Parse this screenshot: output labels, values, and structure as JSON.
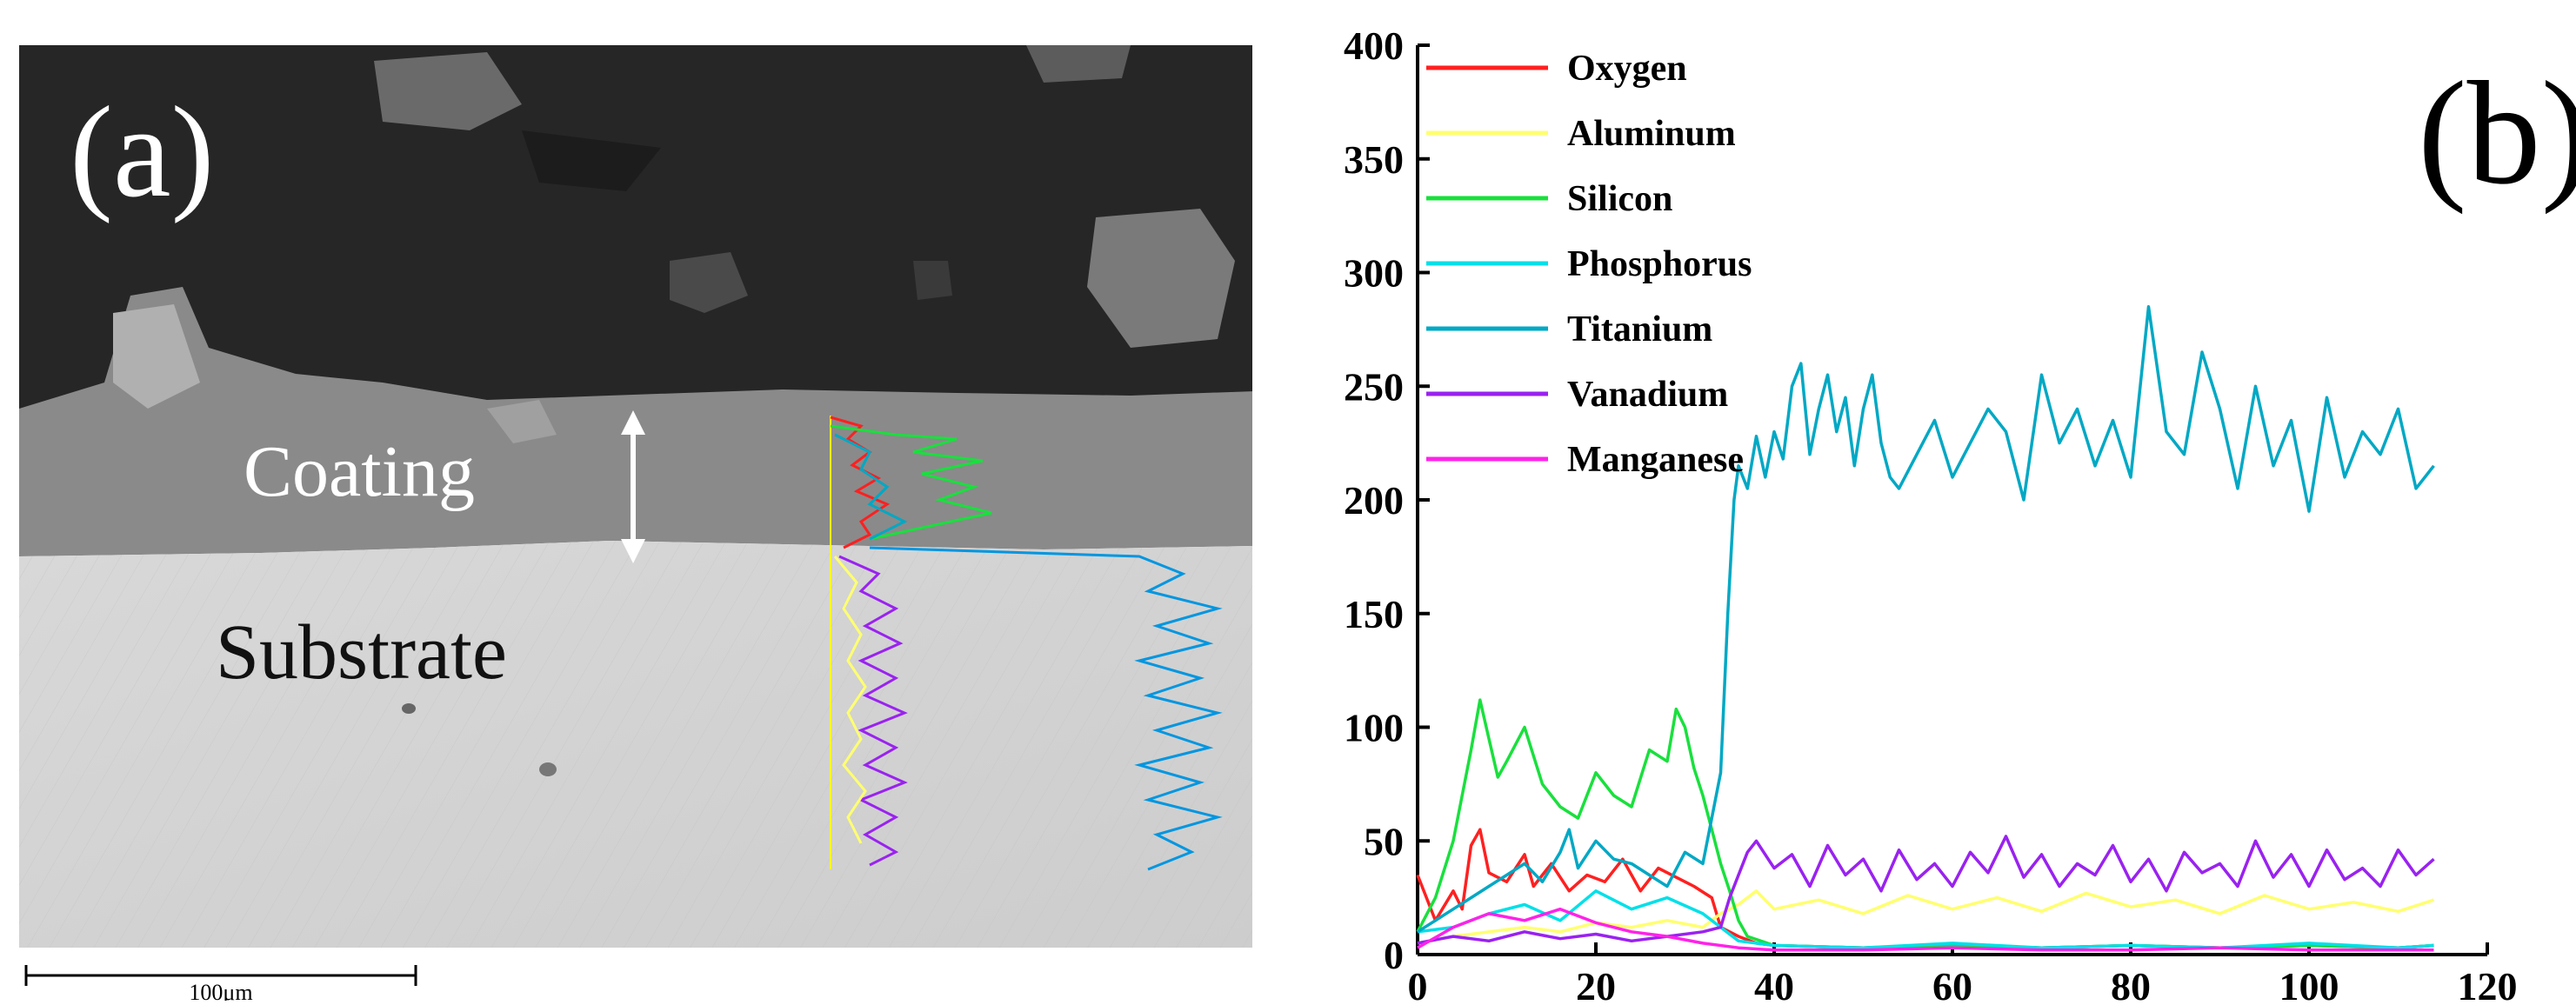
{
  "panel_a": {
    "label": "(a)",
    "coating_label": "Coating",
    "substrate_label": "Substrate",
    "scale_label": "100μm"
  },
  "panel_b": {
    "label": "(b)"
  },
  "chart_data": {
    "type": "line",
    "title": "",
    "xlabel": "",
    "ylabel": "",
    "xlim": [
      0,
      120
    ],
    "ylim": [
      0,
      400
    ],
    "xticks": [
      0,
      20,
      40,
      60,
      80,
      100,
      120
    ],
    "yticks": [
      0,
      50,
      100,
      150,
      200,
      250,
      300,
      350,
      400
    ],
    "legend_position": "top-left",
    "grid": false,
    "series": [
      {
        "name": "Oxygen",
        "color": "#ff2020",
        "x": [
          0,
          2,
          4,
          5,
          6,
          7,
          8,
          10,
          12,
          13,
          15,
          17,
          19,
          21,
          23,
          25,
          27,
          29,
          31,
          33,
          34,
          36,
          38,
          40,
          50,
          60,
          70,
          80,
          90,
          100,
          110,
          114
        ],
        "y": [
          35,
          15,
          28,
          20,
          48,
          55,
          36,
          32,
          44,
          30,
          40,
          28,
          35,
          32,
          42,
          28,
          38,
          34,
          30,
          25,
          12,
          8,
          5,
          4,
          3,
          4,
          3,
          4,
          3,
          4,
          3,
          4
        ]
      },
      {
        "name": "Aluminum",
        "color": "#ffff70",
        "x": [
          0,
          4,
          8,
          12,
          16,
          20,
          24,
          28,
          32,
          34,
          36,
          38,
          40,
          45,
          50,
          55,
          60,
          65,
          70,
          75,
          80,
          85,
          90,
          95,
          100,
          105,
          110,
          114
        ],
        "y": [
          5,
          8,
          10,
          12,
          10,
          14,
          12,
          15,
          12,
          18,
          22,
          28,
          20,
          24,
          18,
          26,
          20,
          25,
          19,
          27,
          21,
          24,
          18,
          26,
          20,
          23,
          19,
          24
        ]
      },
      {
        "name": "Silicon",
        "color": "#19e03d",
        "x": [
          0,
          2,
          4,
          6,
          7,
          8,
          9,
          10,
          12,
          14,
          16,
          18,
          20,
          22,
          24,
          26,
          28,
          29,
          30,
          31,
          32,
          33,
          34,
          35,
          36,
          37,
          40,
          50,
          60,
          70,
          80,
          90,
          100,
          110,
          114
        ],
        "y": [
          10,
          25,
          50,
          90,
          112,
          95,
          78,
          85,
          100,
          75,
          65,
          60,
          80,
          70,
          65,
          90,
          85,
          108,
          100,
          82,
          70,
          55,
          40,
          28,
          15,
          8,
          4,
          3,
          4,
          3,
          4,
          3,
          4,
          3,
          4
        ]
      },
      {
        "name": "Phosphorus",
        "color": "#00e0e8",
        "x": [
          0,
          4,
          8,
          12,
          16,
          20,
          24,
          28,
          32,
          34,
          36,
          40,
          50,
          60,
          70,
          80,
          90,
          100,
          110,
          114
        ],
        "y": [
          10,
          12,
          18,
          22,
          15,
          28,
          20,
          25,
          18,
          12,
          6,
          4,
          3,
          5,
          3,
          4,
          3,
          5,
          3,
          4
        ]
      },
      {
        "name": "Titanium",
        "color": "#00a8c4",
        "x": [
          0,
          2,
          4,
          6,
          8,
          10,
          12,
          14,
          16,
          17,
          18,
          20,
          22,
          24,
          26,
          28,
          30,
          32,
          34,
          34.8,
          35.5,
          36,
          37,
          38,
          39,
          40,
          41,
          42,
          43,
          44,
          45,
          46,
          47,
          48,
          49,
          50,
          51,
          52,
          53,
          54,
          56,
          58,
          60,
          62,
          64,
          66,
          68,
          70,
          72,
          74,
          76,
          78,
          80,
          82,
          84,
          86,
          88,
          90,
          92,
          94,
          96,
          98,
          100,
          102,
          104,
          106,
          108,
          110,
          112,
          114
        ],
        "y": [
          10,
          15,
          20,
          25,
          30,
          35,
          40,
          32,
          45,
          55,
          38,
          50,
          42,
          40,
          35,
          30,
          45,
          40,
          80,
          150,
          200,
          215,
          205,
          228,
          210,
          230,
          218,
          250,
          260,
          220,
          240,
          255,
          230,
          245,
          215,
          240,
          255,
          225,
          210,
          205,
          220,
          235,
          210,
          225,
          240,
          230,
          200,
          255,
          225,
          240,
          215,
          235,
          210,
          285,
          230,
          220,
          265,
          240,
          205,
          250,
          215,
          235,
          195,
          245,
          210,
          230,
          220,
          240,
          205,
          215
        ]
      },
      {
        "name": "Vanadium",
        "color": "#9a22f0",
        "x": [
          0,
          4,
          8,
          12,
          16,
          20,
          24,
          28,
          32,
          34,
          35,
          36,
          37,
          38,
          40,
          42,
          44,
          46,
          48,
          50,
          52,
          54,
          56,
          58,
          60,
          62,
          64,
          66,
          68,
          70,
          72,
          74,
          76,
          78,
          80,
          82,
          84,
          86,
          88,
          90,
          92,
          94,
          96,
          98,
          100,
          102,
          104,
          106,
          108,
          110,
          112,
          114
        ],
        "y": [
          5,
          8,
          6,
          10,
          7,
          9,
          6,
          8,
          10,
          12,
          25,
          35,
          45,
          50,
          38,
          44,
          30,
          48,
          35,
          42,
          28,
          46,
          33,
          40,
          30,
          45,
          36,
          52,
          34,
          44,
          30,
          40,
          35,
          48,
          32,
          42,
          28,
          45,
          36,
          40,
          30,
          50,
          34,
          44,
          30,
          46,
          33,
          38,
          30,
          46,
          35,
          42
        ]
      },
      {
        "name": "Manganese",
        "color": "#ff22e8",
        "x": [
          0,
          4,
          8,
          12,
          16,
          20,
          24,
          28,
          32,
          36,
          40,
          50,
          60,
          70,
          80,
          90,
          100,
          110,
          114
        ],
        "y": [
          3,
          12,
          18,
          15,
          20,
          14,
          10,
          8,
          5,
          3,
          2,
          2,
          3,
          2,
          2,
          3,
          2,
          2,
          2
        ]
      }
    ]
  }
}
